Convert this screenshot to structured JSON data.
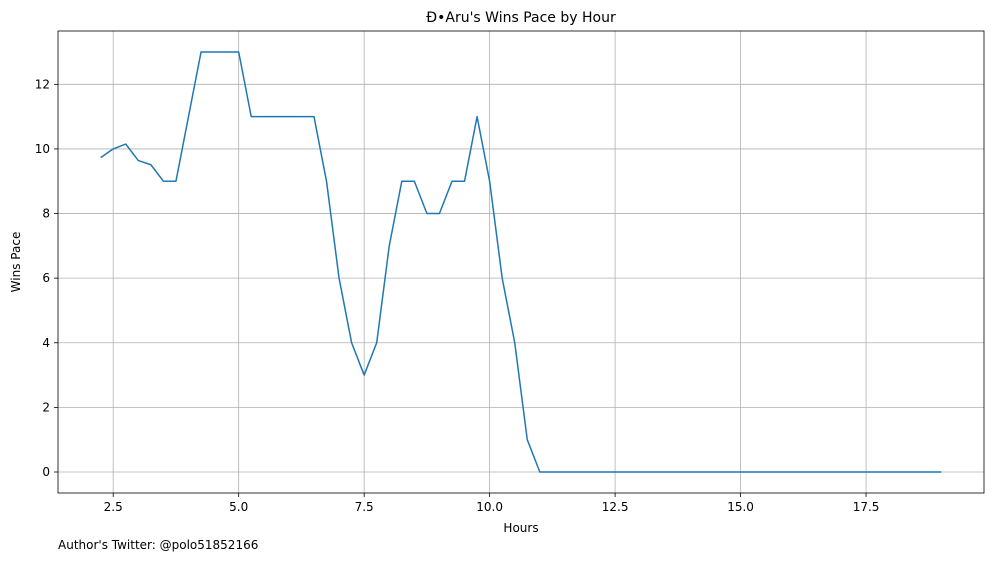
{
  "chart_data": {
    "type": "line",
    "title": "Đ•Aru's Wins Pace by Hour",
    "xlabel": "Hours",
    "ylabel": "Wins Pace",
    "xlim": [
      1.4,
      19.85
    ],
    "ylim": [
      -0.65,
      13.65
    ],
    "xticks": [
      2.5,
      5.0,
      7.5,
      10.0,
      12.5,
      15.0,
      17.5
    ],
    "yticks": [
      0,
      2,
      4,
      6,
      8,
      10,
      12
    ],
    "grid": true,
    "series": [
      {
        "color": "#1f77b4",
        "x": [
          2.25,
          2.5,
          2.75,
          3.0,
          3.25,
          3.5,
          3.75,
          4.0,
          4.25,
          4.5,
          4.75,
          5.0,
          5.25,
          5.5,
          5.75,
          6.0,
          6.25,
          6.5,
          6.75,
          7.0,
          7.25,
          7.5,
          7.75,
          8.0,
          8.25,
          8.5,
          8.75,
          9.0,
          9.25,
          9.5,
          9.75,
          10.0,
          10.25,
          10.5,
          10.75,
          11.0,
          11.25,
          11.5,
          11.75,
          12.0,
          12.25,
          12.5,
          12.75,
          13.0,
          13.25,
          13.5,
          13.75,
          14.0,
          14.25,
          14.5,
          14.75,
          15.0,
          15.25,
          15.5,
          15.75,
          16.0,
          16.25,
          16.5,
          16.75,
          17.0,
          17.25,
          17.5,
          17.75,
          18.0,
          18.25,
          18.5,
          18.75,
          19.0
        ],
        "y": [
          9.73,
          10.0,
          10.15,
          9.64,
          9.51,
          9.0,
          9.0,
          11.0,
          13.0,
          13.0,
          13.0,
          13.0,
          11.0,
          11.0,
          11.0,
          11.0,
          11.0,
          11.0,
          9.0,
          6.0,
          4.0,
          3.0,
          4.0,
          7.0,
          9.0,
          9.0,
          8.0,
          8.0,
          9.0,
          9.0,
          11.0,
          9.0,
          6.0,
          4.0,
          1.0,
          0,
          0,
          0,
          0,
          0,
          0,
          0,
          0,
          0,
          0,
          0,
          0,
          0,
          0,
          0,
          0,
          0,
          0,
          0,
          0,
          0,
          0,
          0,
          0,
          0,
          0,
          0,
          0,
          0,
          0,
          0,
          0,
          0
        ]
      }
    ]
  },
  "footnote": "Author's Twitter: @polo51852166"
}
